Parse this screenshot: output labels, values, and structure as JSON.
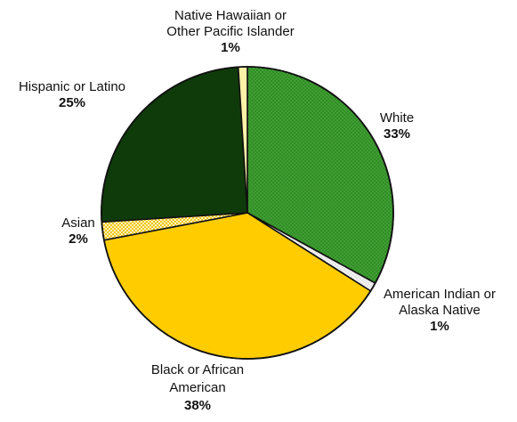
{
  "chart_data": {
    "type": "pie",
    "title": "",
    "slices": [
      {
        "label_lines": [
          "White"
        ],
        "percent_text": "33%",
        "value": 33,
        "color": "#2e8b1f",
        "pattern": "dots",
        "icon": "dotted-green-fill"
      },
      {
        "label_lines": [
          "American Indian or",
          "Alaska Native"
        ],
        "percent_text": "1%",
        "value": 1,
        "color": "#f3f3f3",
        "pattern": "fine-dots",
        "icon": "dotted-white-fill"
      },
      {
        "label_lines": [
          "Black or African",
          "American"
        ],
        "percent_text": "38%",
        "value": 38,
        "color": "#ffcc00",
        "pattern": "solid",
        "icon": "solid-yellow-fill"
      },
      {
        "label_lines": [
          "Asian"
        ],
        "percent_text": "2%",
        "value": 2,
        "color": "#ffd24d",
        "pattern": "checker",
        "icon": "checker-yellow-fill"
      },
      {
        "label_lines": [
          "Hispanic or Latino"
        ],
        "percent_text": "25%",
        "value": 25,
        "color": "#0f3b0a",
        "pattern": "solid",
        "icon": "solid-dark-green-fill"
      },
      {
        "label_lines": [
          "Native Hawaiian or",
          "Other Pacific Islander"
        ],
        "percent_text": "1%",
        "value": 1,
        "color": "#fff2a8",
        "pattern": "solid",
        "icon": "solid-pale-yellow-fill"
      }
    ]
  }
}
